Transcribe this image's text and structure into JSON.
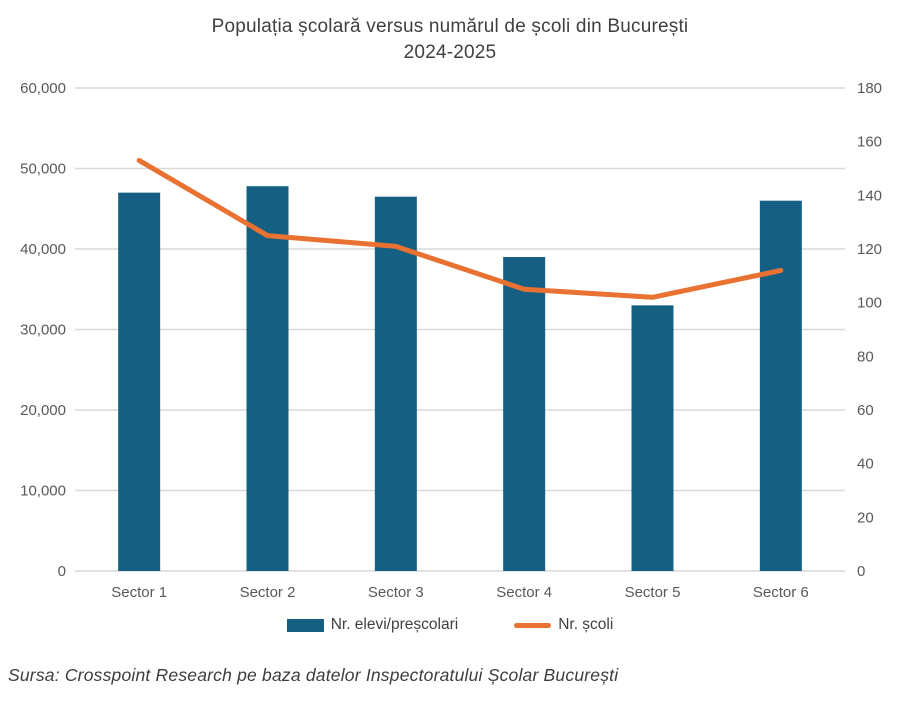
{
  "chart": {
    "title": "Populația școlară versus numărul de școli din București",
    "subtitle": "2024-2025",
    "legend": [
      {
        "label": "Nr. elevi/preșcolari",
        "marker": "bar-swatch"
      },
      {
        "label": "Nr. școli",
        "marker": "line-swatch"
      }
    ],
    "footer": "Sursa: Crosspoint Research pe baza datelor Inspectoratului Școlar București"
  },
  "chart_data": {
    "type": "bar",
    "subtype": "combo-bar-line-dual-axis",
    "title": "Populația școlară versus numărul de școli din București 2024-2025",
    "categories": [
      "Sector 1",
      "Sector 2",
      "Sector 3",
      "Sector 4",
      "Sector 5",
      "Sector 6"
    ],
    "series": [
      {
        "name": "Nr. elevi/preșcolari",
        "type": "bar",
        "axis": "left",
        "color": "#156082",
        "values": [
          47000,
          47800,
          46500,
          39000,
          33000,
          46000
        ]
      },
      {
        "name": "Nr. școli",
        "type": "line",
        "axis": "right",
        "color": "#E97132",
        "values": [
          153,
          125,
          121,
          105,
          102,
          112
        ]
      }
    ],
    "y_left": {
      "min": 0,
      "max": 60000,
      "step": 10000
    },
    "y_right": {
      "min": 0,
      "max": 180,
      "step": 20
    },
    "xlabel": "",
    "ylabel_left": "",
    "ylabel_right": "",
    "grid": true,
    "gridline_color": "#D9D9D9",
    "legend_position": "bottom"
  }
}
